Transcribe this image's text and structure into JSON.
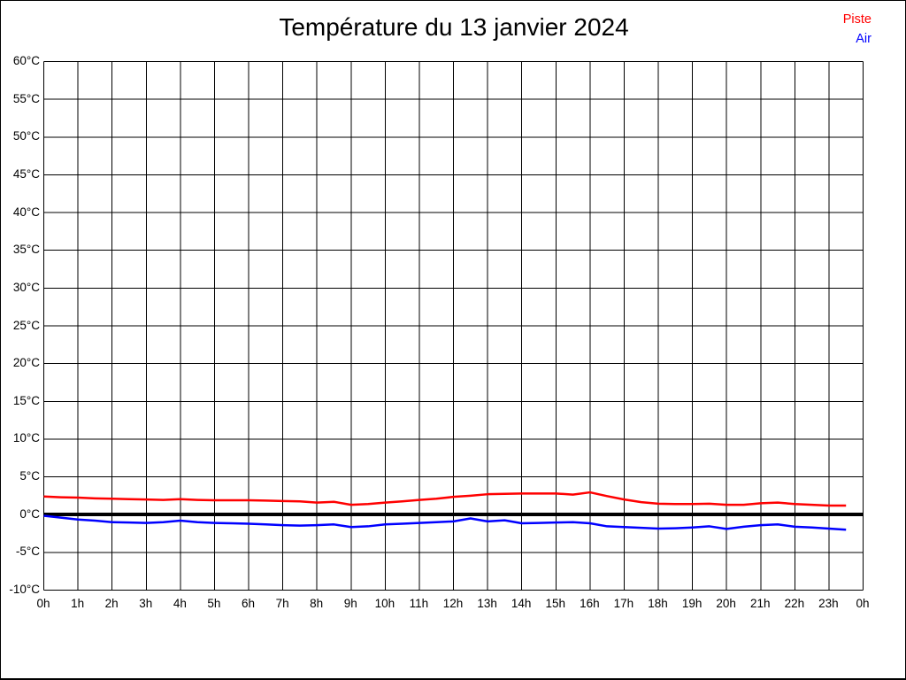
{
  "page": {
    "background": "#ffffff",
    "border_color": "#000000"
  },
  "chart_data": {
    "type": "line",
    "title": "Température du 13 janvier 2024",
    "xlabel": "",
    "ylabel": "",
    "x_axis": {
      "min": 0,
      "max": 24,
      "tick_step": 1,
      "unit": "h",
      "tick_labels": [
        "0h",
        "1h",
        "2h",
        "3h",
        "4h",
        "5h",
        "6h",
        "7h",
        "8h",
        "9h",
        "10h",
        "11h",
        "12h",
        "13h",
        "14h",
        "15h",
        "16h",
        "17h",
        "18h",
        "19h",
        "20h",
        "21h",
        "22h",
        "23h",
        "0h"
      ]
    },
    "y_axis": {
      "min": -10,
      "max": 60,
      "tick_step": 5,
      "unit": "°C",
      "tick_labels": [
        "60°C",
        "55°C",
        "50°C",
        "45°C",
        "40°C",
        "35°C",
        "30°C",
        "25°C",
        "20°C",
        "15°C",
        "10°C",
        "5°C",
        "0°C",
        "-5°C",
        "-10°C"
      ]
    },
    "grid": {
      "show": true,
      "color": "#000000",
      "line_width": 1
    },
    "zero_line": {
      "value": 0,
      "color": "#000000",
      "width": 4
    },
    "legend": {
      "position": "top-right"
    },
    "x": [
      0,
      0.5,
      1,
      1.5,
      2,
      2.5,
      3,
      3.5,
      4,
      4.5,
      5,
      5.5,
      6,
      6.5,
      7,
      7.5,
      8,
      8.5,
      9,
      9.5,
      10,
      10.5,
      11,
      11.5,
      12,
      12.5,
      13,
      13.5,
      14,
      14.5,
      15,
      15.5,
      16,
      16.5,
      17,
      17.5,
      18,
      18.5,
      19,
      19.5,
      20,
      20.5,
      21,
      21.5,
      22,
      22.5,
      23,
      23.5
    ],
    "series": [
      {
        "name": "Piste",
        "color": "#ff0000",
        "values": [
          2.4,
          2.3,
          2.25,
          2.15,
          2.1,
          2.05,
          2.0,
          1.95,
          2.05,
          1.95,
          1.9,
          1.9,
          1.9,
          1.85,
          1.8,
          1.75,
          1.6,
          1.7,
          1.3,
          1.4,
          1.6,
          1.75,
          1.95,
          2.1,
          2.35,
          2.5,
          2.7,
          2.75,
          2.8,
          2.8,
          2.8,
          2.65,
          2.95,
          2.45,
          2.0,
          1.65,
          1.45,
          1.4,
          1.4,
          1.45,
          1.3,
          1.3,
          1.5,
          1.6,
          1.4,
          1.3,
          1.2,
          1.2
        ]
      },
      {
        "name": "Air",
        "color": "#0000ff",
        "values": [
          -0.15,
          -0.4,
          -0.65,
          -0.8,
          -1.0,
          -1.05,
          -1.1,
          -1.0,
          -0.8,
          -1.0,
          -1.1,
          -1.15,
          -1.2,
          -1.3,
          -1.4,
          -1.45,
          -1.4,
          -1.3,
          -1.65,
          -1.55,
          -1.3,
          -1.2,
          -1.1,
          -1.0,
          -0.9,
          -0.5,
          -0.9,
          -0.75,
          -1.15,
          -1.1,
          -1.05,
          -1.0,
          -1.15,
          -1.55,
          -1.65,
          -1.75,
          -1.85,
          -1.8,
          -1.7,
          -1.55,
          -1.9,
          -1.6,
          -1.4,
          -1.3,
          -1.6,
          -1.7,
          -1.85,
          -2.0
        ]
      }
    ]
  }
}
